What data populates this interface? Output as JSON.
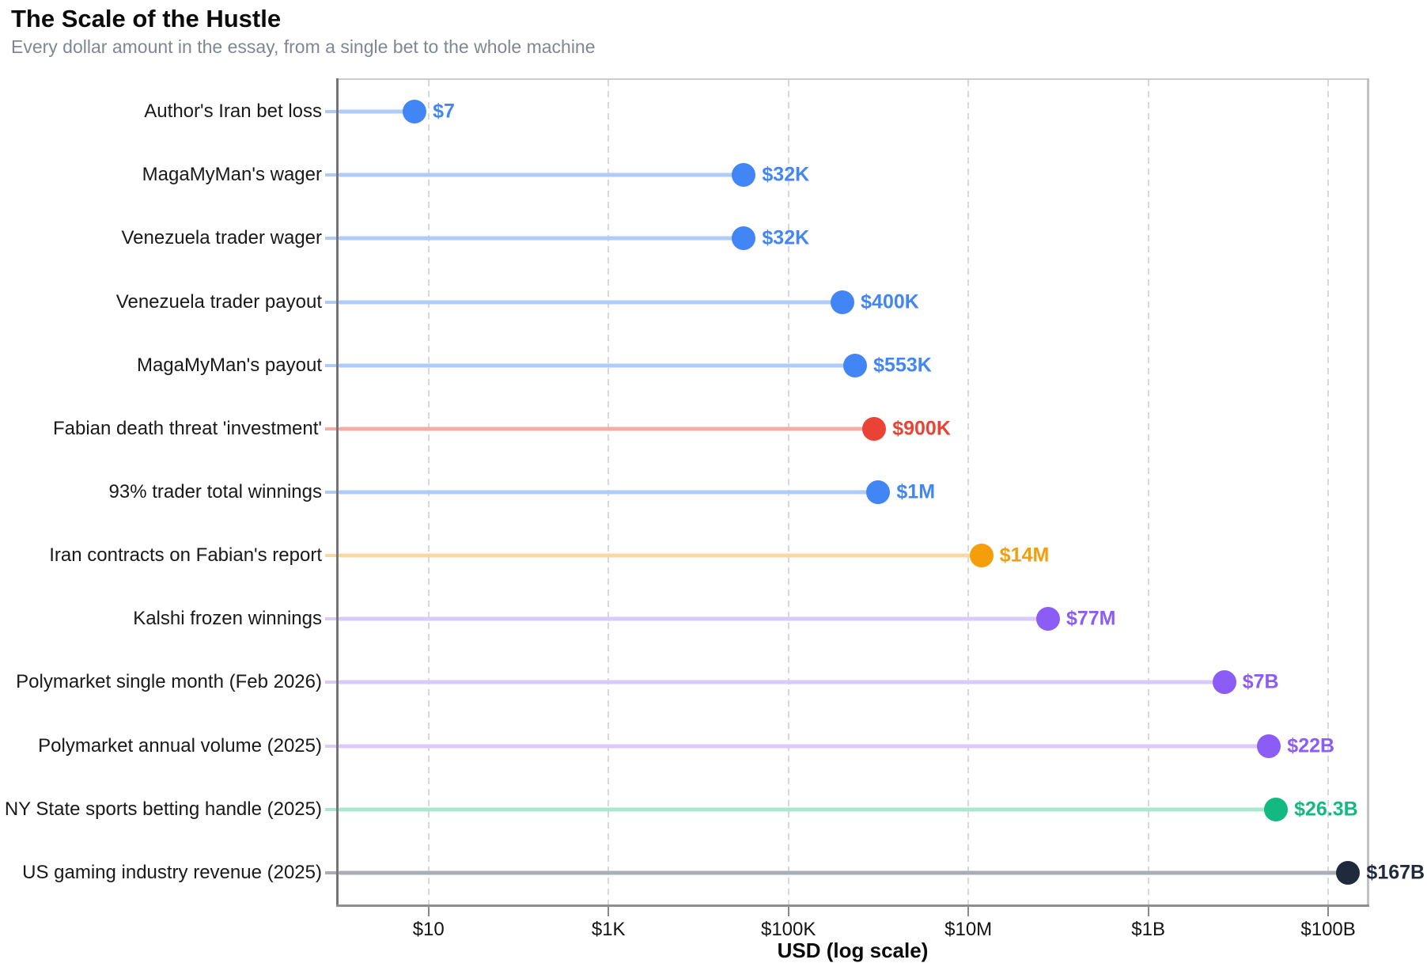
{
  "header": {
    "title": "The Scale of the Hustle",
    "subtitle": "Every dollar amount in the essay, from a single bet to the whole machine"
  },
  "x_axis": {
    "label": "USD (log scale)",
    "scale": "log10",
    "max_log10": 11.43,
    "ticks": [
      {
        "label": "$10",
        "value": 10
      },
      {
        "label": "$1K",
        "value": 1000
      },
      {
        "label": "$100K",
        "value": 100000
      },
      {
        "label": "$10M",
        "value": 10000000
      },
      {
        "label": "$1B",
        "value": 1000000000
      },
      {
        "label": "$100B",
        "value": 100000000000
      }
    ]
  },
  "chart_data": {
    "type": "bar",
    "variant": "horizontal-lollipop",
    "title": "The Scale of the Hustle",
    "subtitle": "Every dollar amount in the essay, from a single bet to the whole machine",
    "xlabel": "USD (log scale)",
    "ylabel": "",
    "xscale": "log10",
    "xlim": [
      1,
      270000000000
    ],
    "grid": "vertical-dashed-at-ticks",
    "legend": "none",
    "categories": [
      "Author's Iran bet loss",
      "MagaMyMan's wager",
      "Venezuela trader wager",
      "Venezuela trader payout",
      "MagaMyMan's payout",
      "Fabian death threat 'investment'",
      "93% trader total winnings",
      "Iran contracts on Fabian's report",
      "Kalshi frozen winnings",
      "Polymarket single month (Feb 2026)",
      "Polymarket annual volume (2025)",
      "NY State sports betting handle (2025)",
      "US gaming industry revenue (2025)"
    ],
    "values": [
      7,
      32000,
      32000,
      400000,
      553000,
      900000,
      1000000,
      14000000,
      77000000,
      7000000000,
      22000000000,
      26300000000,
      167000000000
    ],
    "value_labels": [
      "$7",
      "$32K",
      "$32K",
      "$400K",
      "$553K",
      "$900K",
      "$1M",
      "$14M",
      "$77M",
      "$7B",
      "$22B",
      "$26.3B",
      "$167B"
    ],
    "point_colors": [
      "#4285F4",
      "#4285F4",
      "#4285F4",
      "#4285F4",
      "#4285F4",
      "#EA4335",
      "#4285F4",
      "#F59E0B",
      "#8B5CF6",
      "#8B5CF6",
      "#8B5CF6",
      "#12B981",
      "#1F2B3D"
    ],
    "stem_colors": [
      "#AECBFA",
      "#AECBFA",
      "#AECBFA",
      "#AECBFA",
      "#AECBFA",
      "#F6ACA6",
      "#AECBFA",
      "#F9D9A2",
      "#DAC9FB",
      "#DAC9FB",
      "#DAC9FB",
      "#A9E8CE",
      "#A9AEB6"
    ]
  },
  "style_colors": {
    "grid": "#d8d8d8",
    "spine_left": "#747474",
    "spine_bottom": "#8d8d8d",
    "spine_top": "#cccccc",
    "spine_right": "#c2c2c2",
    "tick_mark": "#8a8a8a",
    "tick_label": "#131313",
    "category_label": "#191919",
    "title": "#0b0b0b",
    "subtitle": "#7f8795"
  }
}
